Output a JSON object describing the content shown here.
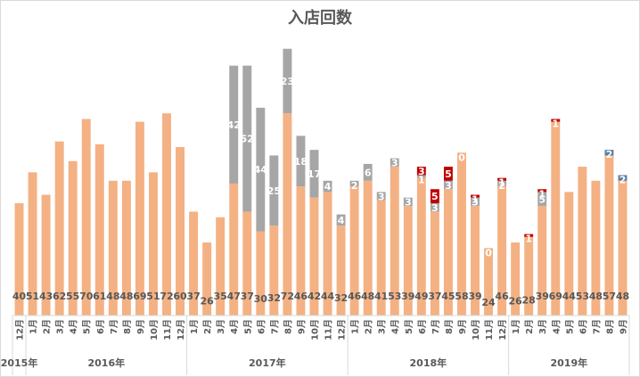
{
  "chart_data": {
    "type": "bar",
    "stacked": true,
    "title": "入店回数",
    "xlabel": "",
    "ylabel": "",
    "ylim": [
      0,
      100
    ],
    "grid": false,
    "legend": "none",
    "categories": [
      "12月",
      "1月",
      "2月",
      "3月",
      "4月",
      "5月",
      "6月",
      "7月",
      "8月",
      "9月",
      "10月",
      "11月",
      "12月",
      "1月",
      "2月",
      "3月",
      "4月",
      "5月",
      "6月",
      "7月",
      "8月",
      "9月",
      "10月",
      "11月",
      "12月",
      "1月",
      "2月",
      "3月",
      "4月",
      "5月",
      "6月",
      "7月",
      "8月",
      "9月",
      "10月",
      "11月",
      "12月",
      "1月",
      "2月",
      "3月",
      "4月",
      "5月",
      "6月",
      "7月",
      "8月",
      "9月"
    ],
    "years": [
      {
        "label": "2015年",
        "start": 0,
        "end": 0
      },
      {
        "label": "2016年",
        "start": 1,
        "end": 12
      },
      {
        "label": "2017年",
        "start": 13,
        "end": 24
      },
      {
        "label": "2018年",
        "start": 25,
        "end": 36
      },
      {
        "label": "2019年",
        "start": 37,
        "end": 45
      }
    ],
    "series": [
      {
        "color": "#f4b183",
        "values": [
          40,
          51,
          43,
          62,
          55,
          70,
          61,
          48,
          48,
          69,
          51,
          72,
          60,
          37,
          26,
          35,
          47,
          37,
          30,
          32,
          72,
          46,
          42,
          44,
          32,
          46,
          48,
          41,
          53,
          39,
          49,
          37,
          45,
          58,
          39,
          24,
          46,
          26,
          28,
          39,
          69,
          44,
          53,
          48,
          57,
          48
        ]
      },
      {
        "color": "#a6a6a6",
        "values": [
          0,
          0,
          0,
          0,
          0,
          0,
          0,
          0,
          0,
          0,
          0,
          0,
          0,
          0,
          0,
          0,
          42,
          52,
          44,
          25,
          23,
          18,
          17,
          4,
          4,
          2,
          6,
          3,
          3,
          3,
          1,
          3,
          3,
          0,
          3,
          0,
          2,
          0,
          0,
          5,
          0,
          0,
          0,
          0,
          0,
          0
        ],
        "labels": [
          null,
          null,
          null,
          null,
          null,
          null,
          null,
          null,
          null,
          null,
          null,
          null,
          null,
          null,
          null,
          null,
          "42",
          "52",
          "44",
          "25",
          "23",
          "18",
          "17",
          "4",
          "4",
          "2",
          "6",
          "3",
          "3",
          "3",
          "1",
          "3",
          "3",
          "0",
          "3",
          "0",
          "2",
          null,
          null,
          "5",
          null,
          null,
          null,
          null,
          null,
          null
        ]
      },
      {
        "color": "#c00000",
        "values": [
          0,
          0,
          0,
          0,
          0,
          0,
          0,
          0,
          0,
          0,
          0,
          0,
          0,
          0,
          0,
          0,
          0,
          0,
          0,
          0,
          0,
          0,
          0,
          0,
          0,
          0,
          0,
          0,
          0,
          0,
          3,
          5,
          5,
          0,
          1,
          0,
          1,
          0,
          1,
          1,
          1,
          0,
          0,
          0,
          0,
          0
        ],
        "labels": [
          null,
          null,
          null,
          null,
          null,
          null,
          null,
          null,
          null,
          null,
          null,
          null,
          null,
          null,
          null,
          null,
          null,
          null,
          null,
          null,
          null,
          null,
          null,
          null,
          null,
          null,
          null,
          null,
          null,
          null,
          "3",
          "5",
          "5",
          null,
          "1",
          null,
          "1",
          null,
          "1",
          "1",
          "1",
          null,
          null,
          null,
          null,
          null
        ]
      },
      {
        "color": "#5b7fa6",
        "values": [
          0,
          0,
          0,
          0,
          0,
          0,
          0,
          0,
          0,
          0,
          0,
          0,
          0,
          0,
          0,
          0,
          0,
          0,
          0,
          0,
          0,
          0,
          0,
          0,
          0,
          0,
          0,
          0,
          0,
          0,
          0,
          0,
          0,
          0,
          0,
          0,
          0,
          0,
          0,
          0,
          0,
          0,
          0,
          0,
          2,
          2
        ],
        "labels": [
          null,
          null,
          null,
          null,
          null,
          null,
          null,
          null,
          null,
          null,
          null,
          null,
          null,
          null,
          null,
          null,
          null,
          null,
          null,
          null,
          null,
          null,
          null,
          null,
          null,
          null,
          null,
          null,
          null,
          null,
          null,
          null,
          null,
          null,
          null,
          null,
          null,
          null,
          null,
          null,
          null,
          null,
          null,
          null,
          "2",
          "2"
        ]
      }
    ]
  }
}
